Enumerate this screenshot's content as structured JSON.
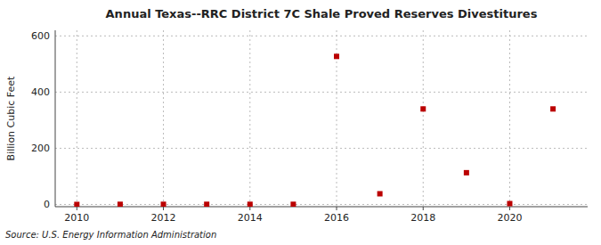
{
  "chart_data": {
    "type": "scatter",
    "title": "Annual Texas--RRC District 7C Shale Proved Reserves Divestitures",
    "ylabel": "Billion Cubic Feet",
    "source": "Source: U.S. Energy Information Administration",
    "x": [
      2010,
      2011,
      2012,
      2013,
      2014,
      2015,
      2016,
      2017,
      2018,
      2019,
      2020,
      2021
    ],
    "values": [
      0.0,
      0.5,
      0.5,
      0.5,
      0.5,
      0.5,
      527.0,
      38.0,
      340.0,
      113.0,
      3.0,
      340.0
    ],
    "color": "#bb0000",
    "marker": "square",
    "xlim": [
      2009.5,
      2021.8
    ],
    "ylim": [
      -8,
      620
    ],
    "xticks": [
      2010,
      2012,
      2014,
      2016,
      2018,
      2020
    ],
    "yticks": [
      0,
      200,
      400,
      600
    ],
    "grid": true
  }
}
